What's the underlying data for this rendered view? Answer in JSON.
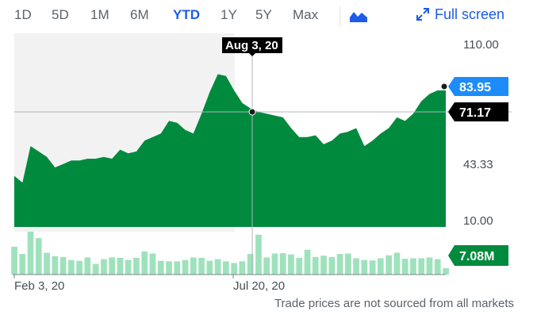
{
  "range_selector": {
    "options": [
      "1D",
      "5D",
      "1M",
      "6M",
      "YTD",
      "1Y",
      "5Y",
      "Max"
    ],
    "active": "YTD"
  },
  "toolbar": {
    "chart_type_icon": "mountain-chart-icon",
    "fullscreen_icon": "expand-arrows-icon",
    "fullscreen_label": "Full screen"
  },
  "colors": {
    "accent": "#1d5ce8",
    "price_area": "#008a3e",
    "volume_bar": "#9ee2bc",
    "highlight_band": "#f2f2f2",
    "crosshair": "#b0b4b9",
    "last_price_label": "#1d8cf8",
    "crosshair_label": "#000000",
    "volume_label": "#008a3e"
  },
  "crosshair": {
    "date_label": "Aug 3, 20",
    "price_label": "71.17"
  },
  "last_price_label": "83.95",
  "volume_label": "7.08M",
  "note": "Trade prices are not sourced from all markets",
  "chart_data": {
    "type": "area",
    "y_ticks": [
      "110.00",
      "43.33",
      "10.00"
    ],
    "x_ticks": [
      "Feb 3, 20",
      "Jul 20, 20"
    ],
    "price_series": [
      36,
      32,
      53,
      50,
      47,
      41,
      43,
      45,
      45,
      46,
      46,
      47,
      46,
      51,
      49,
      50,
      56,
      58,
      60,
      67,
      66,
      62,
      60,
      71,
      83,
      93,
      92,
      84,
      77,
      74,
      72,
      71,
      70,
      69,
      63,
      58,
      58,
      59,
      54,
      56,
      60,
      61,
      63,
      53,
      56,
      60,
      63,
      69,
      67,
      71,
      78,
      82,
      84,
      84
    ],
    "volume_series": [
      6.5,
      4.8,
      10.0,
      8.5,
      5.1,
      4.3,
      4.1,
      3.4,
      3.2,
      4.0,
      2.5,
      3.6,
      4.0,
      3.9,
      3.4,
      3.9,
      5.4,
      4.9,
      3.2,
      3.1,
      3.1,
      3.4,
      4.0,
      3.9,
      3.2,
      3.6,
      3.1,
      2.7,
      3.1,
      4.8,
      9.3,
      4.0,
      4.9,
      5.0,
      4.7,
      3.9,
      5.8,
      4.1,
      4.4,
      4.1,
      4.8,
      4.9,
      3.8,
      3.4,
      3.3,
      3.8,
      4.5,
      5.1,
      3.7,
      3.8,
      3.8,
      4.0,
      3.6,
      1.5
    ],
    "highlight": "Feb 3, 20 to Aug 3, 20",
    "grid": false
  }
}
